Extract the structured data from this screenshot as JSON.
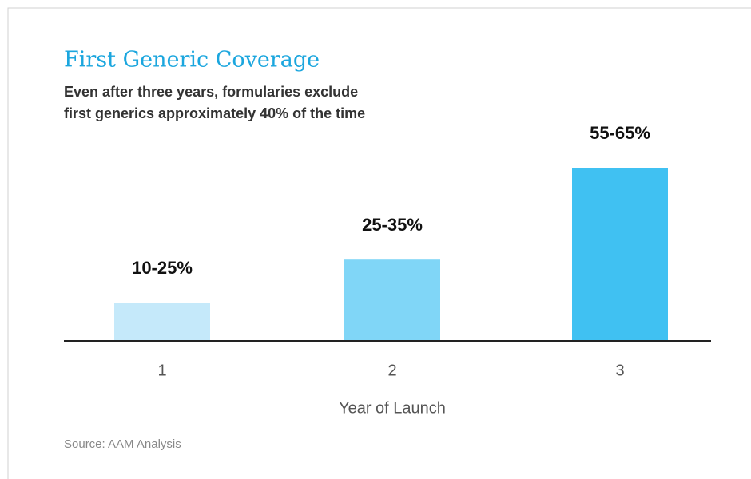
{
  "chart_data": {
    "type": "bar",
    "title": "First Generic Coverage",
    "subtitle": [
      "Even after three years, formularies exclude",
      "first generics approximately 40% of the time"
    ],
    "categories": [
      "1",
      "2",
      "3"
    ],
    "values": [
      13,
      28,
      60
    ],
    "value_labels": [
      "10-25%",
      "25-35%",
      "55-65%"
    ],
    "colors": [
      "#c5e9fa",
      "#80d6f7",
      "#40c1f2"
    ],
    "xlabel": "Year of Launch",
    "source": "Source: AAM Analysis"
  }
}
